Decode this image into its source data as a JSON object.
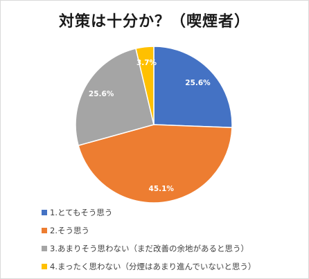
{
  "chart_data": {
    "type": "pie",
    "title": "対策は十分か？（喫煙者）",
    "categories": [
      "1.とてもそう思う",
      "2.そう思う",
      "3.あまりそう思わない（まだ改善の余地があると思う）",
      "4.まったく思わない（分煙はあまり進んでいないと思う）"
    ],
    "values": [
      25.6,
      45.1,
      25.6,
      3.7
    ],
    "labels": [
      "25.6%",
      "45.1%",
      "25.6%",
      "3.7%"
    ],
    "colors": [
      "#4472c4",
      "#ed7d31",
      "#a5a5a5",
      "#ffc000"
    ],
    "legend_position": "bottom"
  }
}
